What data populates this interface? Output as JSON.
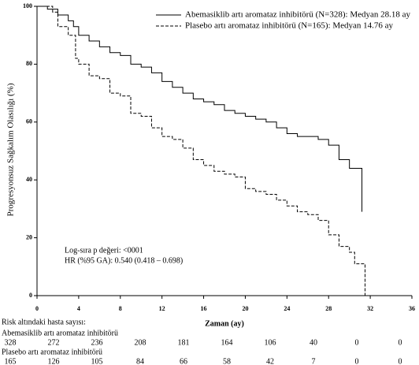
{
  "chart_data": {
    "type": "km",
    "ylabel": "Progresyonsuz Sağkalım Olasılığı (%)",
    "xlabel": "Zaman (ay)",
    "xlim": [
      0,
      36
    ],
    "ylim": [
      0,
      100
    ],
    "xticks": [
      0,
      4,
      8,
      12,
      16,
      20,
      24,
      28,
      32,
      36
    ],
    "yticks": [
      0,
      20,
      40,
      60,
      80,
      100
    ],
    "legend": "upper right",
    "series": [
      {
        "name": "Abemasiklib artı aromataz inhibitörü (N=328): Medyan 28.18 ay",
        "color": "#000000",
        "dash": "solid",
        "x": [
          0,
          1,
          2,
          3,
          3.5,
          4,
          5,
          6,
          7,
          8,
          9,
          10,
          11,
          12,
          13,
          14,
          15,
          16,
          17,
          18,
          19,
          20,
          21,
          22,
          23,
          24,
          25,
          27,
          28,
          29,
          30,
          31.2
        ],
        "values": [
          100,
          99,
          97,
          95,
          93,
          90,
          88,
          86,
          84,
          83,
          80,
          79,
          77,
          74,
          72,
          70,
          68,
          67,
          66,
          64,
          63,
          62,
          61,
          60,
          58,
          56,
          55,
          54,
          52,
          47,
          44,
          29
        ]
      },
      {
        "name": "Plasebo artı aromataz inhibitörü (N=165): Medyan 14.76 ay",
        "color": "#000000",
        "dash": "dashed",
        "x": [
          0,
          1.5,
          2,
          3,
          3.7,
          4,
          5,
          6,
          7,
          8,
          9,
          10,
          11,
          12,
          13,
          14,
          15,
          16,
          17,
          18,
          19,
          20,
          21,
          22,
          23,
          24,
          25,
          26,
          27,
          28,
          29,
          30,
          30.5,
          31.5
        ],
        "values": [
          100,
          98,
          93,
          90,
          82,
          80,
          76,
          75,
          70,
          69,
          63,
          62,
          58,
          55,
          54,
          51,
          47,
          45,
          43,
          42,
          41,
          37,
          36,
          35,
          33,
          31,
          29,
          28,
          26,
          21,
          17,
          15,
          11,
          0
        ]
      }
    ],
    "annotations": [
      "Log-sıra p değeri: <0001",
      "HR (%95 GA): 0.540 (0.418 – 0.698)"
    ],
    "risk_table": {
      "title": "Risk altındaki hasta sayısı:",
      "rows": [
        {
          "label": "Abemasiklib artı aromataz inhibitörü",
          "counts": [
            "328",
            "272",
            "236",
            "208",
            "181",
            "164",
            "106",
            "40",
            "0",
            "0"
          ]
        },
        {
          "label": "Plasebo artı aromataz inhibitörü",
          "counts": [
            "165",
            "126",
            "105",
            "84",
            "66",
            "58",
            "42",
            "7",
            "0",
            "0"
          ]
        }
      ]
    }
  }
}
